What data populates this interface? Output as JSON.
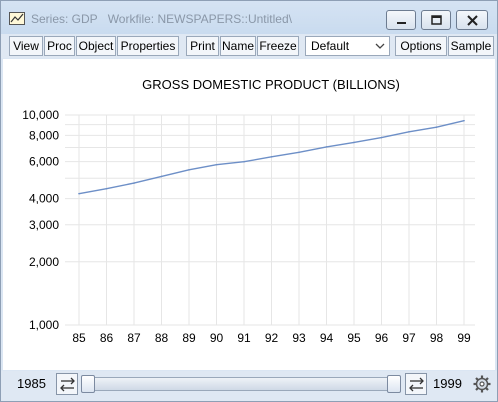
{
  "window": {
    "series_label": "Series: GDP",
    "workfile_label": "Workfile: NEWSPAPERS::Untitled\\"
  },
  "toolbar": {
    "view": "View",
    "proc": "Proc",
    "object": "Object",
    "properties": "Properties",
    "print": "Print",
    "name": "Name",
    "freeze": "Freeze",
    "dropdown_value": "Default",
    "options": "Options",
    "sample": "Sample"
  },
  "slider": {
    "start": "1985",
    "end": "1999"
  },
  "icons": {
    "graph": "graph-icon",
    "minimize": "minimize-icon",
    "restore": "restore-icon",
    "close": "close-icon",
    "dropdown": "chevron-down-icon",
    "left_arrows": "swap-arrows-icon",
    "right_arrows": "swap-arrows-icon",
    "settings": "gear-icon"
  },
  "colors": {
    "line": "#6d8fc7",
    "grid": "#e6e6e6",
    "frame": "#dbe6f3"
  },
  "chart_data": {
    "type": "line",
    "title": "GROSS DOMESTIC PRODUCT (BILLIONS)",
    "xlabel": "",
    "ylabel": "",
    "yscale": "log",
    "ylim": [
      1000,
      10000
    ],
    "x": [
      "85",
      "86",
      "87",
      "88",
      "89",
      "90",
      "91",
      "92",
      "93",
      "94",
      "95",
      "96",
      "97",
      "98",
      "99"
    ],
    "ytick_labels": [
      "1,000",
      "2,000",
      "3,000",
      "4,000",
      "6,000",
      "8,000",
      "10,000"
    ],
    "ytick_values": [
      1000,
      2000,
      3000,
      4000,
      6000,
      8000,
      10000
    ],
    "series": [
      {
        "values": [
          4220,
          4460,
          4740,
          5100,
          5480,
          5800,
          5990,
          6320,
          6640,
          7050,
          7400,
          7810,
          8320,
          8750,
          9400
        ]
      }
    ],
    "grid": true
  }
}
